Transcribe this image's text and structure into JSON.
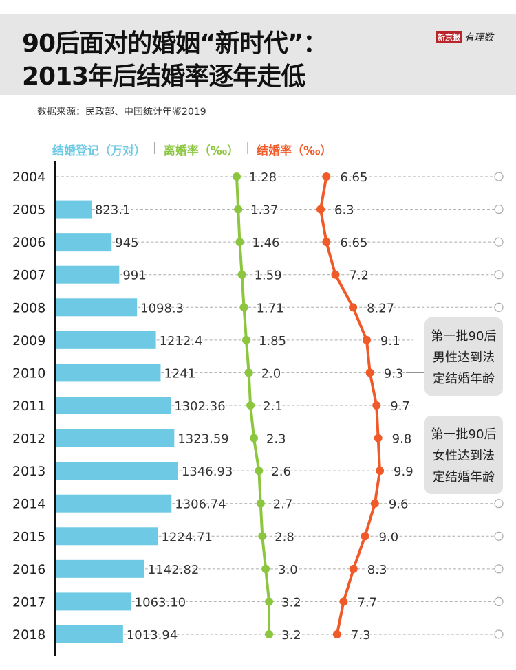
{
  "title_line1": "90后面对的婚姻“新时代”：",
  "title_line2": "2013年后结婚率逐年走低",
  "logo": {
    "brand": "新京报",
    "sub": "有理数"
  },
  "source": "数据来源：民政部、中国统计年鉴2019",
  "legend": [
    {
      "label": "结婚登记（万对）",
      "color": "#6ecae4"
    },
    {
      "label": "离婚率（‰）",
      "color": "#8cc63f"
    },
    {
      "label": "结婚率（‰）",
      "color": "#f05a28"
    }
  ],
  "callouts": [
    {
      "lines": [
        "第一批90后",
        "男性达到法",
        "定结婚年龄"
      ],
      "year": "2010"
    },
    {
      "lines": [
        "第一批90后",
        "女性达到法",
        "定结婚年龄"
      ],
      "year": "2013"
    }
  ],
  "chart_data": {
    "type": "bar+line",
    "categories": [
      "2004",
      "2005",
      "2006",
      "2007",
      "2008",
      "2009",
      "2010",
      "2011",
      "2012",
      "2013",
      "2014",
      "2015",
      "2016",
      "2017",
      "2018"
    ],
    "series": [
      {
        "name": "结婚登记（万对）",
        "type": "bar",
        "values": [
          null,
          "823.1",
          "945",
          "991",
          "1098.3",
          "1212.4",
          "1241",
          "1302.36",
          "1323.59",
          "1346.93",
          "1306.74",
          "1224.71",
          "1142.82",
          "1063.10",
          "1013.94"
        ]
      },
      {
        "name": "离婚率（‰）",
        "type": "line",
        "values": [
          "1.28",
          "1.37",
          "1.46",
          "1.59",
          "1.71",
          "1.85",
          "2.0",
          "2.1",
          "2.3",
          "2.6",
          "2.7",
          "2.8",
          "3.0",
          "3.2",
          "3.2"
        ]
      },
      {
        "name": "结婚率（‰）",
        "type": "line",
        "values": [
          "6.65",
          "6.3",
          "6.65",
          "7.2",
          "8.27",
          "9.1",
          "9.3",
          "9.7",
          "9.8",
          "9.9",
          "9.6",
          "9.0",
          "8.3",
          "7.7",
          "7.3"
        ]
      }
    ],
    "colors": {
      "bar": "#6ecae4",
      "divorce": "#8cc63f",
      "marriage": "#f05a28"
    }
  }
}
